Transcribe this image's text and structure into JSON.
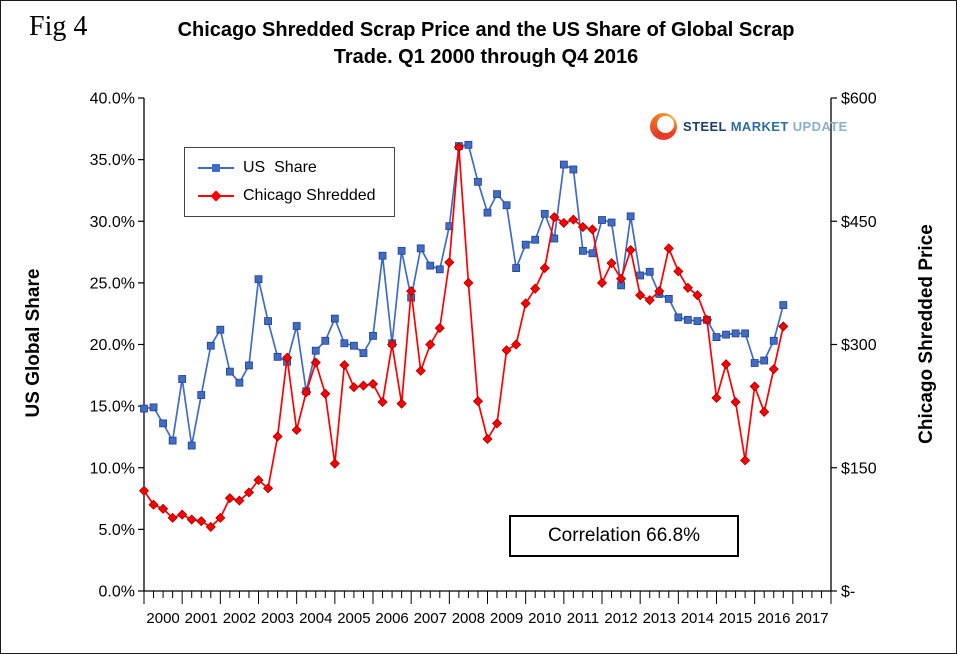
{
  "page": {
    "fig_label": "Fig 4"
  },
  "title": {
    "line1": "Chicago Shredded Scrap Price and the US Share of Global Scrap",
    "line2": "Trade. Q1 2000 through Q4 2016"
  },
  "axes": {
    "left_title": "US Global Share",
    "right_title": "Chicago Shredded Price"
  },
  "legend": {
    "items": [
      {
        "label": "US  Share"
      },
      {
        "label": "Chicago Shredded"
      }
    ]
  },
  "annotation": {
    "correlation": "Correlation 66.8%"
  },
  "logo": {
    "steel": "STEEL",
    "market": "MARKET",
    "update": "UPDATE"
  },
  "chart_data": {
    "type": "line",
    "title": "Chicago Shredded Scrap Price and the US Share of Global Scrap Trade. Q1 2000 through Q4 2016",
    "x_years": [
      "2000",
      "2001",
      "2002",
      "2003",
      "2004",
      "2005",
      "2006",
      "2007",
      "2008",
      "2009",
      "2010",
      "2011",
      "2012",
      "2013",
      "2014",
      "2015",
      "2016",
      "2017"
    ],
    "axis_quarters": 72,
    "grid": "off",
    "legend_position": "top-left-inside",
    "left_axis": {
      "title": "US Global Share",
      "min": 0,
      "max": 40,
      "step": 5,
      "ticks": [
        "40.0%",
        "35.0%",
        "30.0%",
        "25.0%",
        "20.0%",
        "15.0%",
        "10.0%",
        "5.0%",
        "0.0%"
      ]
    },
    "right_axis": {
      "title": "Chicago Shredded Price",
      "min": 0,
      "max": 600,
      "step": 150,
      "ticks": [
        "$600",
        "$450",
        "$300",
        "$150",
        "$-"
      ]
    },
    "correlation": "Correlation 66.8%",
    "series": [
      {
        "name": "US  Share",
        "axis": "left",
        "unit": "percent",
        "marker": "square",
        "color": "#3f6bc9",
        "edge": "#26437f",
        "values": [
          14.8,
          14.9,
          13.6,
          12.2,
          17.2,
          11.8,
          15.9,
          19.9,
          21.2,
          17.8,
          16.9,
          18.3,
          25.3,
          21.9,
          19.0,
          18.6,
          21.5,
          16.2,
          19.5,
          20.3,
          22.1,
          20.1,
          19.9,
          19.3,
          20.7,
          27.2,
          20.1,
          27.6,
          23.8,
          27.8,
          26.4,
          26.1,
          29.6,
          36.1,
          36.2,
          33.2,
          30.7,
          32.2,
          31.3,
          26.2,
          28.1,
          28.5,
          30.6,
          28.6,
          34.6,
          34.2,
          27.6,
          27.4,
          30.1,
          29.9,
          24.8,
          30.4,
          25.6,
          25.9,
          24.1,
          23.7,
          22.2,
          22.0,
          21.9,
          22.0,
          20.6,
          20.8,
          20.9,
          20.9,
          18.5,
          18.7,
          20.3,
          23.2
        ]
      },
      {
        "name": "Chicago Shredded",
        "axis": "right",
        "unit": "usd_per_ton",
        "marker": "diamond",
        "color": "#ff0000",
        "edge": "#a00000",
        "values": [
          122,
          105,
          100,
          89,
          93,
          87,
          85,
          78,
          89,
          113,
          110,
          120,
          135,
          125,
          188,
          284,
          196,
          242,
          278,
          240,
          155,
          275,
          248,
          250,
          252,
          230,
          300,
          228,
          365,
          268,
          300,
          320,
          400,
          540,
          375,
          231,
          185,
          204,
          293,
          300,
          350,
          368,
          393,
          455,
          448,
          452,
          443,
          440,
          375,
          399,
          380,
          415,
          360,
          354,
          365,
          417,
          389,
          369,
          360,
          330,
          235,
          276,
          230,
          159,
          249,
          218,
          270,
          322
        ]
      }
    ]
  }
}
